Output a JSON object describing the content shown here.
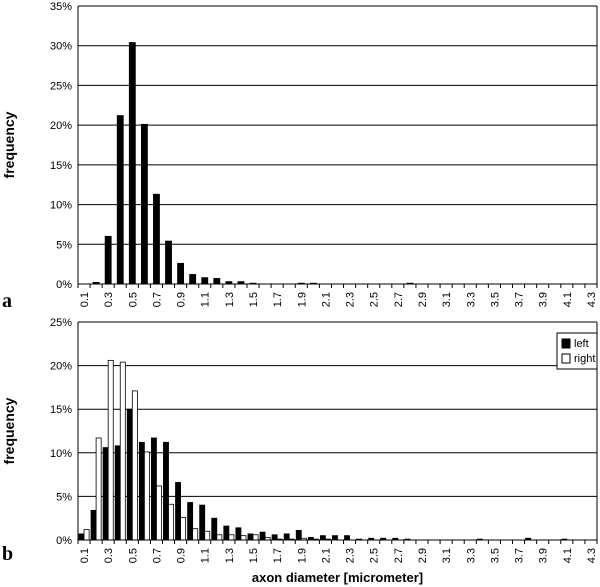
{
  "chart_data": [
    {
      "type": "bar",
      "panel": "a",
      "ylabel": "frequency",
      "xlabel": "",
      "ylim": [
        0,
        35
      ],
      "yticks": [
        "0%",
        "5%",
        "10%",
        "15%",
        "20%",
        "25%",
        "30%",
        "35%"
      ],
      "grid": "horizontal",
      "xtick_labels": [
        "0.1",
        "0.3",
        "0.5",
        "0.7",
        "0.9",
        "1.1",
        "1.3",
        "1.5",
        "1.7",
        "1.9",
        "2.1",
        "2.3",
        "2.5",
        "2.7",
        "2.9",
        "3.1",
        "3.3",
        "3.5",
        "3.7",
        "3.9",
        "4.1",
        "4.3"
      ],
      "categories": [
        "0.1",
        "0.2",
        "0.3",
        "0.4",
        "0.5",
        "0.6",
        "0.7",
        "0.8",
        "0.9",
        "1.0",
        "1.1",
        "1.2",
        "1.3",
        "1.4",
        "1.5",
        "1.6",
        "1.7",
        "1.8",
        "1.9",
        "2.0",
        "2.1",
        "2.2",
        "2.3",
        "2.4",
        "2.5",
        "2.6",
        "2.7",
        "2.8",
        "2.9",
        "3.0",
        "3.1",
        "3.2",
        "3.3",
        "3.4",
        "3.5",
        "3.6",
        "3.7",
        "3.8",
        "3.9",
        "4.0",
        "4.1",
        "4.2",
        "4.3"
      ],
      "series": [
        {
          "color": "#000000",
          "values": [
            0,
            0.2,
            6.0,
            21.2,
            30.4,
            20.1,
            11.3,
            5.4,
            2.6,
            1.2,
            0.8,
            0.7,
            0.3,
            0.3,
            0.1,
            0,
            0,
            0,
            0.1,
            0.1,
            0,
            0,
            0,
            0,
            0,
            0,
            0,
            0.1,
            0,
            0,
            0,
            0,
            0,
            0,
            0,
            0,
            0,
            0,
            0,
            0,
            0,
            0,
            0
          ]
        }
      ]
    },
    {
      "type": "bar",
      "panel": "b",
      "ylabel": "frequency",
      "xlabel": "axon diameter [micrometer]",
      "ylim": [
        0,
        25
      ],
      "yticks": [
        "0%",
        "5%",
        "10%",
        "15%",
        "20%",
        "25%"
      ],
      "grid": "horizontal",
      "legend": "top-right",
      "xtick_labels": [
        "0.1",
        "0.3",
        "0.5",
        "0.7",
        "0.9",
        "1.1",
        "1.3",
        "1.5",
        "1.7",
        "1.9",
        "2.1",
        "2.3",
        "2.5",
        "2.7",
        "2.9",
        "3.1",
        "3.3",
        "3.5",
        "3.7",
        "3.9",
        "4.1",
        "4.3"
      ],
      "categories": [
        "0.1",
        "0.2",
        "0.3",
        "0.4",
        "0.5",
        "0.6",
        "0.7",
        "0.8",
        "0.9",
        "1.0",
        "1.1",
        "1.2",
        "1.3",
        "1.4",
        "1.5",
        "1.6",
        "1.7",
        "1.8",
        "1.9",
        "2.0",
        "2.1",
        "2.2",
        "2.3",
        "2.4",
        "2.5",
        "2.6",
        "2.7",
        "2.8",
        "2.9",
        "3.0",
        "3.1",
        "3.2",
        "3.3",
        "3.4",
        "3.5",
        "3.6",
        "3.7",
        "3.8",
        "3.9",
        "4.0",
        "4.1",
        "4.2",
        "4.3"
      ],
      "series": [
        {
          "name": "left",
          "color": "#000000",
          "values": [
            0.7,
            3.4,
            10.6,
            10.8,
            15.0,
            11.2,
            11.7,
            11.2,
            6.6,
            4.3,
            4.0,
            2.5,
            1.6,
            1.4,
            0.7,
            0.9,
            0.6,
            0.7,
            1.1,
            0.3,
            0.5,
            0.5,
            0.5,
            0.1,
            0.2,
            0.2,
            0.2,
            0.1,
            0,
            0,
            0,
            0,
            0,
            0.1,
            0,
            0,
            0,
            0.2,
            0,
            0,
            0.1,
            0,
            0
          ]
        },
        {
          "name": "right",
          "color": "#ffffff",
          "values": [
            1.2,
            11.7,
            20.6,
            20.4,
            17.1,
            10.1,
            6.2,
            4.1,
            2.6,
            1.3,
            1.0,
            0.6,
            0.6,
            0.5,
            0.6,
            0.3,
            0.1,
            0.1,
            0.2,
            0.1,
            0.1,
            0,
            0,
            0,
            0,
            0,
            0,
            0,
            0,
            0,
            0,
            0,
            0,
            0,
            0,
            0,
            0,
            0,
            0,
            0,
            0,
            0,
            0
          ]
        }
      ]
    }
  ]
}
